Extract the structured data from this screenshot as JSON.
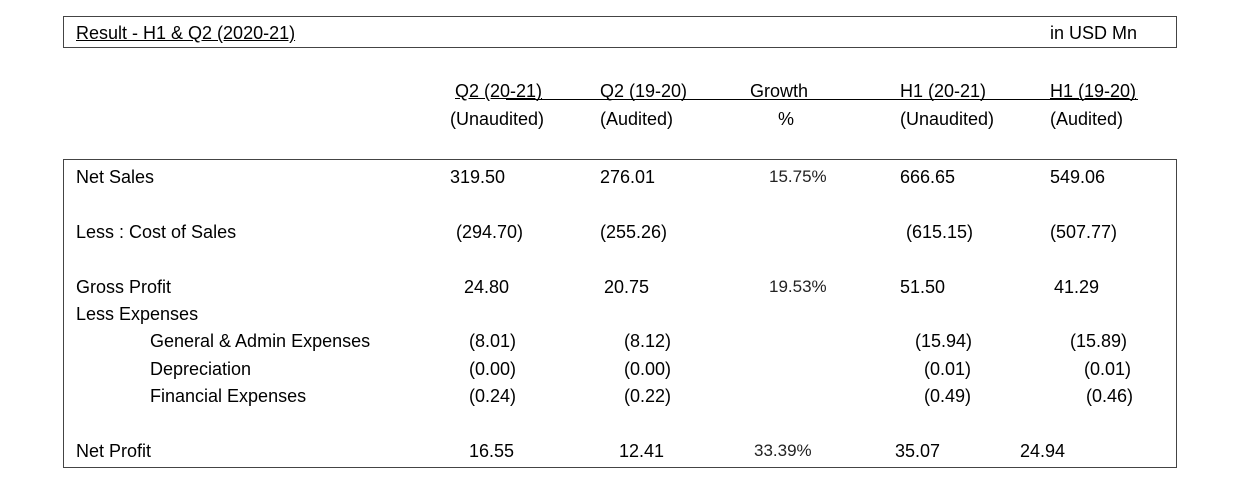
{
  "title": "Result - H1 & Q2 (2020-21)",
  "unit": "in USD Mn",
  "headers": [
    {
      "line1": "Q2 (20-21)",
      "line2": "(Unaudited)"
    },
    {
      "line1": "Q2 (19-20)",
      "line2": "(Audited)"
    },
    {
      "line1": "Growth",
      "line2": "%"
    },
    {
      "line1": "H1 (20-21)",
      "line2": "(Unaudited)"
    },
    {
      "line1": "H1 (19-20)",
      "line2": "(Audited)"
    }
  ],
  "rows": {
    "net_sales": {
      "label": "Net Sales",
      "q2_2021": "319.50",
      "q2_1920": "276.01",
      "growth": "15.75%",
      "h1_2021": "666.65",
      "h1_1920": "549.06"
    },
    "cost_of_sales": {
      "label": "Less : Cost of Sales",
      "q2_2021": "(294.70)",
      "q2_1920": "(255.26)",
      "h1_2021": "(615.15)",
      "h1_1920": "(507.77)"
    },
    "gross_profit": {
      "label": "Gross Profit",
      "q2_2021": "24.80",
      "q2_1920": "20.75",
      "growth": "19.53%",
      "h1_2021": "51.50",
      "h1_1920": "41.29"
    },
    "less_expenses": {
      "label": "Less Expenses"
    },
    "gen_admin": {
      "label": "General & Admin Expenses",
      "q2_2021": "(8.01)",
      "q2_1920": "(8.12)",
      "h1_2021": "(15.94)",
      "h1_1920": "(15.89)"
    },
    "depreciation": {
      "label": "Depreciation",
      "q2_2021": "(0.00)",
      "q2_1920": "(0.00)",
      "h1_2021": "(0.01)",
      "h1_1920": "(0.01)"
    },
    "financial": {
      "label": "Financial Expenses",
      "q2_2021": "(0.24)",
      "q2_1920": "(0.22)",
      "h1_2021": "(0.49)",
      "h1_1920": "(0.46)"
    },
    "net_profit": {
      "label": "Net Profit",
      "q2_2021": "16.55",
      "q2_1920": "12.41",
      "growth": "33.39%",
      "h1_2021": "35.07",
      "h1_1920": "24.94"
    }
  }
}
